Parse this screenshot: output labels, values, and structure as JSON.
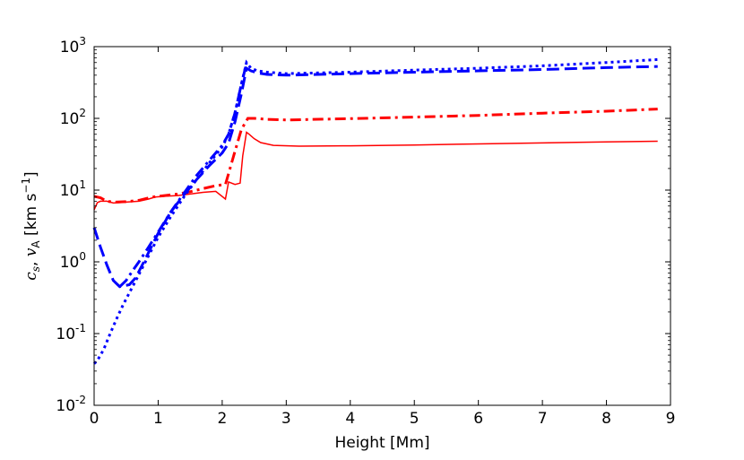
{
  "chart_data": {
    "type": "line",
    "xlabel": "Height [Mm]",
    "ylabel": {
      "symbol_1": "c",
      "subscript_1": "s",
      "separator": ", ",
      "symbol_2": "v",
      "subscript_2": "A",
      "units_open": " [km s",
      "units_exponent": "−1",
      "units_close": "]"
    },
    "xlim": [
      0,
      9
    ],
    "ylim": [
      0.01,
      1000
    ],
    "yscale": "log",
    "grid": false,
    "legend": "none",
    "x_ticks": [
      "0",
      "1",
      "2",
      "3",
      "4",
      "5",
      "6",
      "7",
      "8",
      "9"
    ],
    "y_ticks": [
      {
        "base": "10",
        "exp": "-2"
      },
      {
        "base": "10",
        "exp": "-1"
      },
      {
        "base": "10",
        "exp": "0"
      },
      {
        "base": "10",
        "exp": "1"
      },
      {
        "base": "10",
        "exp": "2"
      },
      {
        "base": "10",
        "exp": "3"
      }
    ],
    "series": [
      {
        "color": "#ff0000",
        "dash": "solid",
        "x": [
          0,
          0.05,
          0.1,
          0.2,
          0.3,
          0.5,
          0.7,
          0.85,
          0.95,
          1.1,
          1.3,
          1.5,
          1.7,
          1.9,
          2.05,
          2.1,
          2.2,
          2.28,
          2.32,
          2.38,
          2.42,
          2.5,
          2.6,
          2.8,
          3.2,
          4,
          5,
          6,
          7,
          8,
          8.8
        ],
        "y": [
          5.3,
          6.7,
          7.0,
          7.0,
          6.6,
          6.8,
          7.0,
          7.5,
          8.0,
          8.2,
          8.4,
          8.8,
          9.3,
          9.6,
          7.5,
          13,
          12,
          12.5,
          30,
          64,
          60,
          52,
          46,
          42,
          41,
          41.5,
          42.5,
          44,
          45.5,
          47,
          48
        ]
      },
      {
        "color": "#ff0000",
        "dash": "dashdot",
        "x": [
          0,
          0.1,
          0.2,
          0.3,
          0.5,
          0.7,
          0.9,
          1.1,
          1.3,
          1.5,
          1.7,
          1.9,
          2.05,
          2.2,
          2.3,
          2.4,
          2.5,
          2.7,
          3.0,
          4,
          5,
          6,
          7,
          8,
          8.8
        ],
        "y": [
          8.2,
          7.8,
          7.0,
          6.8,
          6.9,
          7.2,
          8.0,
          8.4,
          8.8,
          9.5,
          10.5,
          11.5,
          12,
          35,
          70,
          100,
          100,
          97,
          95,
          99,
          104,
          110,
          118,
          126,
          135
        ]
      },
      {
        "color": "#0000ff",
        "dash": "dashed",
        "x": [
          0,
          0.1,
          0.2,
          0.3,
          0.4,
          0.55,
          0.65,
          0.8,
          1.0,
          1.2,
          1.4,
          1.6,
          1.8,
          2.0,
          2.1,
          2.2,
          2.3,
          2.38,
          2.45,
          2.55,
          2.7,
          3.0,
          3.5,
          4,
          5,
          6,
          7,
          8,
          8.8
        ],
        "y": [
          3.0,
          1.6,
          0.9,
          0.55,
          0.45,
          0.48,
          0.6,
          1.1,
          2.5,
          5.0,
          8.5,
          14,
          22,
          33,
          45,
          90,
          220,
          500,
          460,
          430,
          410,
          400,
          410,
          420,
          440,
          460,
          480,
          510,
          530
        ]
      },
      {
        "color": "#0000ff",
        "dash": "dotted",
        "x": [
          0,
          0.05,
          0.15,
          0.25,
          0.35,
          0.45,
          0.6,
          0.8,
          1.0,
          1.2,
          1.4,
          1.6,
          1.8,
          2.0,
          2.1,
          2.2,
          2.3,
          2.38,
          2.45,
          2.55,
          2.7,
          3.0,
          3.5,
          4,
          5,
          6,
          7,
          8,
          8.8
        ],
        "y": [
          0.038,
          0.042,
          0.06,
          0.1,
          0.16,
          0.25,
          0.45,
          1.0,
          2.2,
          4.3,
          8.0,
          14,
          24,
          40,
          60,
          120,
          300,
          600,
          500,
          460,
          440,
          420,
          430,
          440,
          470,
          500,
          540,
          600,
          660
        ]
      },
      {
        "color": "#0000ff",
        "dash": "dashdot",
        "x": [
          0.4,
          0.5,
          0.6,
          0.7,
          0.85,
          1.0,
          1.2,
          1.4,
          1.6,
          1.8,
          2.0,
          2.1,
          2.2,
          2.3,
          2.38
        ],
        "y": [
          0.45,
          0.55,
          0.75,
          1.0,
          1.6,
          2.6,
          5.0,
          9.0,
          16,
          26,
          42,
          60,
          120,
          300,
          580
        ]
      }
    ]
  }
}
